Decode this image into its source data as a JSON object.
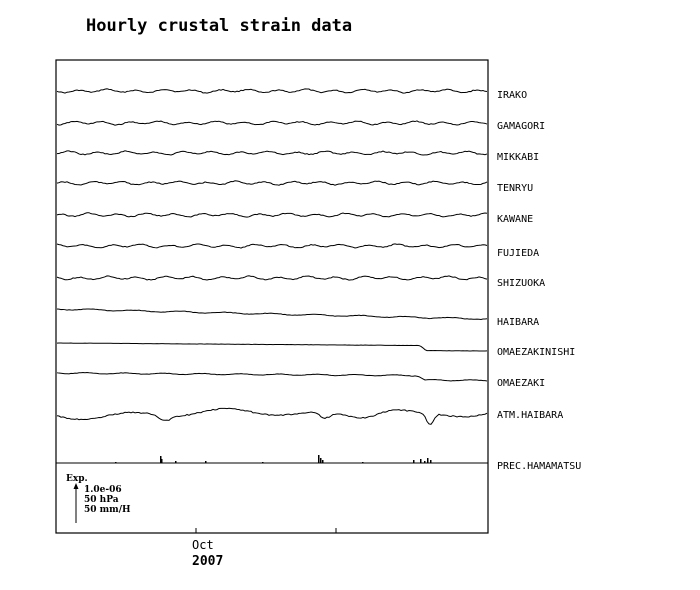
{
  "chart_data": {
    "type": "line",
    "title": "Hourly crustal strain data",
    "x_tick_labels": [
      "Oct"
    ],
    "year_label": "2007",
    "scale_legend": {
      "header": "Exp.",
      "lines": [
        "1.0e-06",
        "50 hPa",
        "50 mm/H"
      ]
    },
    "series": [
      {
        "name": "IRAKO"
      },
      {
        "name": "GAMAGORI"
      },
      {
        "name": "MIKKABI"
      },
      {
        "name": "TENRYU"
      },
      {
        "name": "KAWANE"
      },
      {
        "name": "FUJIEDA"
      },
      {
        "name": "SHIZUOKA"
      },
      {
        "name": "HAIBARA"
      },
      {
        "name": "OMAEZAKINISHI"
      },
      {
        "name": "OMAEZAKI"
      },
      {
        "name": "ATM.HAIBARA"
      },
      {
        "name": "PREC.HAMAMATSU"
      }
    ],
    "grid": false,
    "legend_placement": "right"
  }
}
